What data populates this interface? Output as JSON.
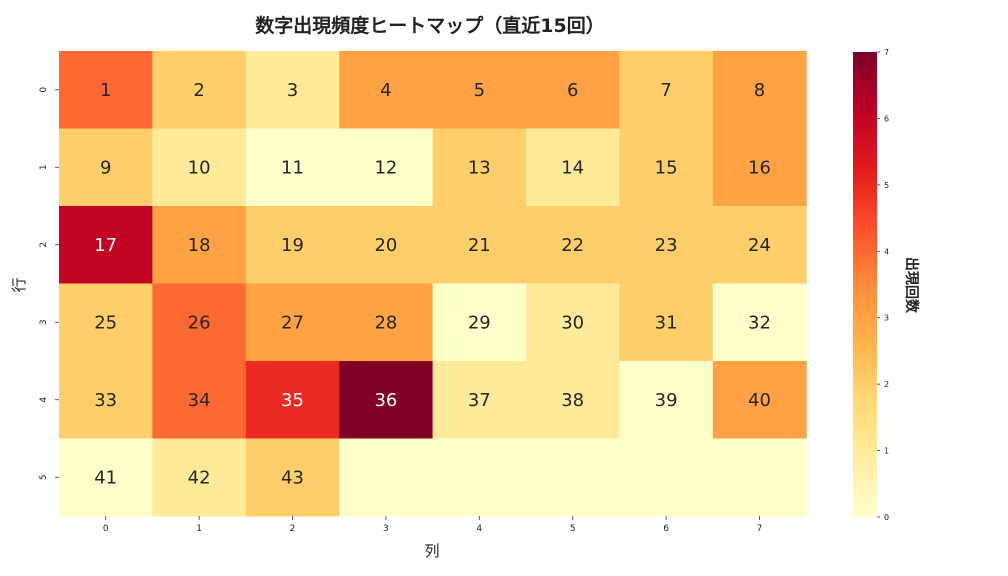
{
  "chart_data": {
    "type": "heatmap",
    "title": "数字出現頻度ヒートマップ（直近15回）",
    "xlabel": "列",
    "ylabel": "行",
    "x_ticks": [
      "0",
      "1",
      "2",
      "3",
      "4",
      "5",
      "6",
      "7"
    ],
    "y_ticks": [
      "0",
      "1",
      "2",
      "3",
      "4",
      "5"
    ],
    "colormap": "YlOrRd",
    "colorbar": {
      "label": "出現回数",
      "range": [
        0,
        7
      ],
      "ticks": [
        "0",
        "1",
        "2",
        "3",
        "4",
        "5",
        "6",
        "7"
      ]
    },
    "labels": [
      [
        "1",
        "2",
        "3",
        "4",
        "5",
        "6",
        "7",
        "8"
      ],
      [
        "9",
        "10",
        "11",
        "12",
        "13",
        "14",
        "15",
        "16"
      ],
      [
        "17",
        "18",
        "19",
        "20",
        "21",
        "22",
        "23",
        "24"
      ],
      [
        "25",
        "26",
        "27",
        "28",
        "29",
        "30",
        "31",
        "32"
      ],
      [
        "33",
        "34",
        "35",
        "36",
        "37",
        "38",
        "39",
        "40"
      ],
      [
        "41",
        "42",
        "43",
        "",
        "",
        "",
        "",
        ""
      ]
    ],
    "values": [
      [
        4,
        2,
        1,
        3,
        3,
        3,
        2,
        3
      ],
      [
        2,
        1,
        0,
        0,
        2,
        1,
        2,
        3
      ],
      [
        6,
        3,
        2,
        2,
        2,
        2,
        2,
        2
      ],
      [
        2,
        4,
        3,
        3,
        0,
        1,
        2,
        0
      ],
      [
        2,
        4,
        5,
        7,
        1,
        1,
        0,
        3
      ],
      [
        0,
        1,
        2,
        0,
        0,
        0,
        0,
        0
      ]
    ]
  }
}
